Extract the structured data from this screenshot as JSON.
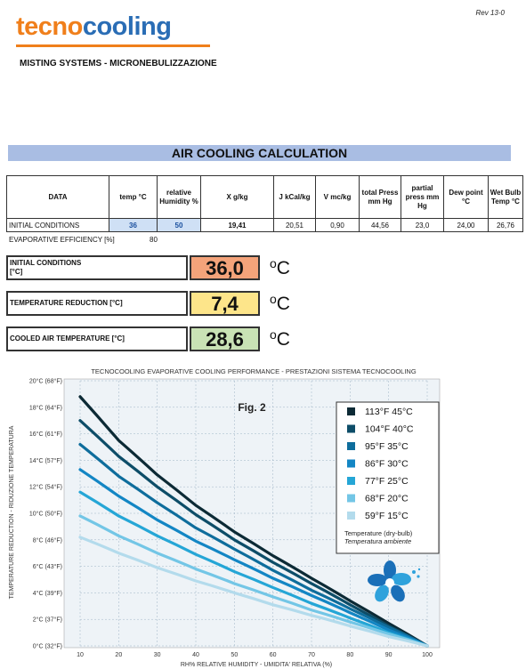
{
  "header": {
    "rev": "Rev 13-0",
    "logo_part1": "tecno",
    "logo_part2": "cooling",
    "subtitle": "MISTING SYSTEMS - MICRONEBULIZZAZIONE",
    "title": "AIR COOLING CALCULATION"
  },
  "table": {
    "headers": [
      "DATA",
      "temp °C",
      "relative Humidity %",
      "X g/kg",
      "J kCal/kg",
      "V mc/kg",
      "total Press mm Hg",
      "partial press mm Hg",
      "Dew point °C",
      "Wet Bulb Temp °C"
    ],
    "row": [
      "INITIAL CONDITIONS",
      "36",
      "50",
      "19,41",
      "20,51",
      "0,90",
      "44,56",
      "23,0",
      "24,00",
      "26,76"
    ],
    "efficiency_label": "EVAPORATIVE EFFICIENCY [%]",
    "efficiency_value": "80"
  },
  "results": [
    {
      "label_line1": "INITIAL CONDITIONS",
      "label_line2": "[°C]",
      "value": "36,0",
      "color": "#f4a37a"
    },
    {
      "label_line1": "TEMPERATURE REDUCTION [°C]",
      "label_line2": "",
      "value": "7,4",
      "color": "#fde58a"
    },
    {
      "label_line1": "COOLED AIR TEMPERATURE [°C]",
      "label_line2": "",
      "value": "28,6",
      "color": "#c9e2b5"
    }
  ],
  "unit": {
    "deg": "o",
    "c": "C"
  },
  "chart_data": {
    "type": "line",
    "title": "TECNOCOOLING EVAPORATIVE COOLING PERFORMANCE - PRESTAZIONI SISTEMA TECNOCOOLING",
    "fig_label": "Fig. 2",
    "xlabel": "RH% RELATIVE HUMIDITY - UMIDITA' RELATIVA (%)",
    "ylabel": "TEMPERATURE REDUCTION - RIDUZIONE TEMPERATURA",
    "x": [
      10,
      20,
      30,
      40,
      50,
      60,
      70,
      80,
      90,
      100
    ],
    "xlim": [
      10,
      100
    ],
    "ylim": [
      0,
      20
    ],
    "y_ticks": [
      "0°C (32°F)",
      "2°C (37°F)",
      "4°C (39°F)",
      "6°C (43°F)",
      "8°C (46°F)",
      "10°C (50°F)",
      "12°C (54°F)",
      "14°C (57°F)",
      "16°C (61°F)",
      "18°C (64°F)",
      "20°C (68°F)"
    ],
    "x_ticks": [
      "10",
      "20",
      "30",
      "40",
      "50",
      "60",
      "70",
      "80",
      "90",
      "100"
    ],
    "grid": true,
    "legend_placement": "top-right",
    "legend_note1": "Temperature (dry-bulb)",
    "legend_note2": "Temperatura ambiente",
    "series": [
      {
        "name": "113°F  45°C",
        "color": "#0c2a35",
        "values": [
          18.8,
          15.5,
          12.9,
          10.6,
          8.6,
          6.8,
          5.1,
          3.4,
          1.7,
          0
        ]
      },
      {
        "name": "104°F  40°C",
        "color": "#0d4d68",
        "values": [
          17.0,
          14.3,
          12.0,
          9.9,
          8.0,
          6.3,
          4.7,
          3.1,
          1.5,
          0
        ]
      },
      {
        "name": "95°F  35°C",
        "color": "#0e6d9c",
        "values": [
          15.2,
          12.8,
          10.8,
          8.9,
          7.3,
          5.7,
          4.2,
          2.8,
          1.4,
          0
        ]
      },
      {
        "name": "86°F  30°C",
        "color": "#1386c4",
        "values": [
          13.3,
          11.3,
          9.5,
          7.9,
          6.5,
          5.1,
          3.8,
          2.5,
          1.2,
          0
        ]
      },
      {
        "name": "77°F  25°C",
        "color": "#25a6d6",
        "values": [
          11.6,
          9.8,
          8.3,
          6.9,
          5.6,
          4.4,
          3.2,
          2.1,
          1.0,
          0
        ]
      },
      {
        "name": "68°F  20°C",
        "color": "#73c6e6",
        "values": [
          9.8,
          8.3,
          7.0,
          5.8,
          4.7,
          3.7,
          2.7,
          1.8,
          0.9,
          0
        ]
      },
      {
        "name": "59°F  15°C",
        "color": "#b3dbec",
        "values": [
          8.2,
          7.0,
          5.9,
          4.9,
          4.0,
          3.1,
          2.3,
          1.5,
          0.7,
          0
        ]
      }
    ]
  }
}
